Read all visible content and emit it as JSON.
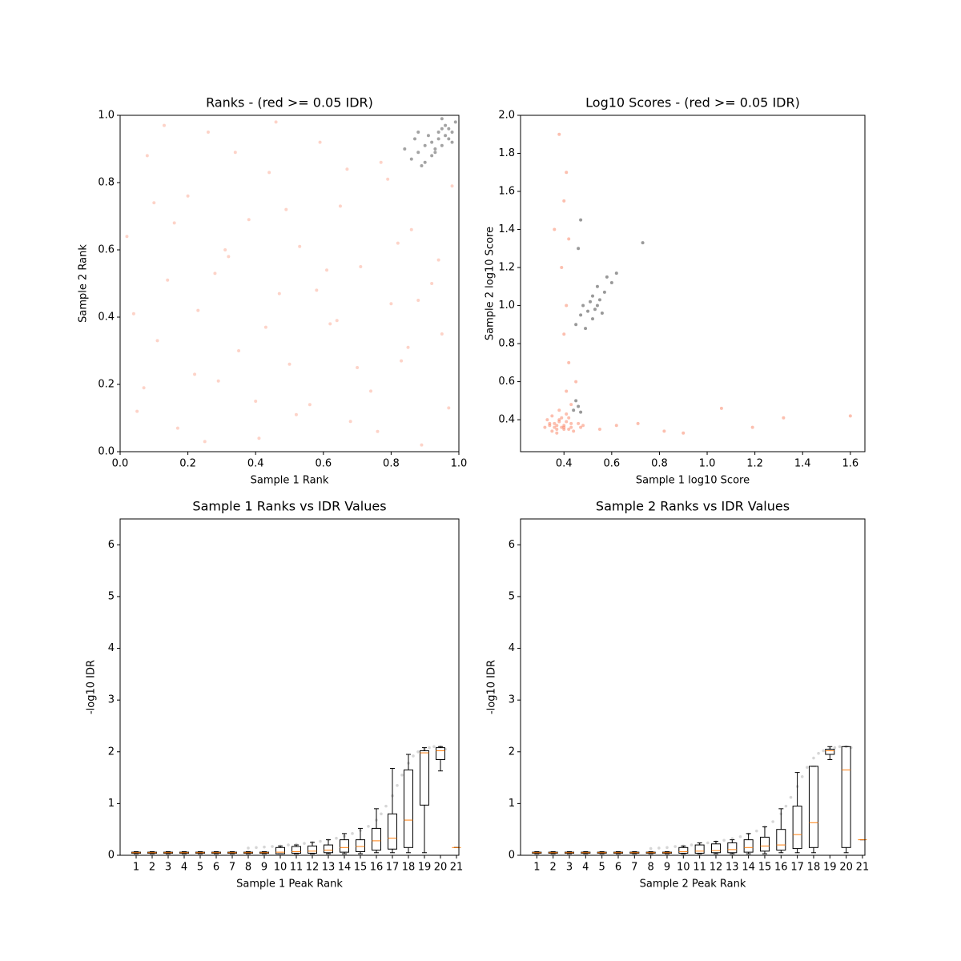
{
  "chart_data": [
    {
      "type": "scatter",
      "title": "Ranks - (red >= 0.05 IDR)",
      "x_label": "Sample 1 Rank",
      "y_label": "Sample 2 Rank",
      "xlim": [
        0,
        1
      ],
      "ylim": [
        0,
        1
      ],
      "xticks": [
        {
          "value": 0,
          "label": "0.0"
        },
        0.2,
        0.4,
        0.6,
        0.8,
        {
          "value": 1,
          "label": "1.0"
        }
      ],
      "yticks": [
        {
          "value": 0,
          "label": "0.0"
        },
        0.2,
        0.4,
        0.6,
        0.8,
        {
          "value": 1,
          "label": "1.0"
        }
      ],
      "series": [
        {
          "color": "#fa8060",
          "alpha": 0.35,
          "x": [
            0.02,
            0.05,
            0.08,
            0.11,
            0.14,
            0.17,
            0.2,
            0.23,
            0.26,
            0.29,
            0.32,
            0.35,
            0.38,
            0.41,
            0.44,
            0.47,
            0.5,
            0.53,
            0.56,
            0.59,
            0.62,
            0.65,
            0.68,
            0.71,
            0.74,
            0.77,
            0.8,
            0.83,
            0.86,
            0.89,
            0.92,
            0.95,
            0.98,
            0.04,
            0.13,
            0.22,
            0.31,
            0.4,
            0.49,
            0.58,
            0.67,
            0.76,
            0.85,
            0.94,
            0.07,
            0.16,
            0.25,
            0.34,
            0.43,
            0.52,
            0.61,
            0.7,
            0.79,
            0.88,
            0.97,
            0.1,
            0.28,
            0.46,
            0.64,
            0.82
          ],
          "y": [
            0.64,
            0.12,
            0.88,
            0.33,
            0.51,
            0.07,
            0.76,
            0.42,
            0.95,
            0.21,
            0.58,
            0.3,
            0.69,
            0.04,
            0.83,
            0.47,
            0.26,
            0.61,
            0.14,
            0.92,
            0.38,
            0.73,
            0.09,
            0.55,
            0.18,
            0.86,
            0.44,
            0.27,
            0.66,
            0.02,
            0.5,
            0.35,
            0.79,
            0.41,
            0.97,
            0.23,
            0.6,
            0.15,
            0.72,
            0.48,
            0.84,
            0.06,
            0.31,
            0.57,
            0.19,
            0.68,
            0.03,
            0.89,
            0.37,
            0.11,
            0.54,
            0.25,
            0.81,
            0.45,
            0.13,
            0.74,
            0.53,
            0.98,
            0.39,
            0.62
          ]
        },
        {
          "color": "#333333",
          "alpha": 0.45,
          "x": [
            0.84,
            0.86,
            0.87,
            0.88,
            0.89,
            0.9,
            0.91,
            0.92,
            0.92,
            0.93,
            0.94,
            0.94,
            0.95,
            0.95,
            0.96,
            0.96,
            0.97,
            0.97,
            0.98,
            0.99,
            0.9,
            0.93,
            0.88,
            0.95,
            0.98
          ],
          "y": [
            0.9,
            0.87,
            0.93,
            0.89,
            0.85,
            0.91,
            0.94,
            0.88,
            0.92,
            0.9,
            0.95,
            0.93,
            0.96,
            0.91,
            0.94,
            0.97,
            0.93,
            0.96,
            0.95,
            0.98,
            0.86,
            0.89,
            0.95,
            0.99,
            0.92
          ]
        }
      ]
    },
    {
      "type": "scatter",
      "title": "Log10 Scores - (red >= 0.05 IDR)",
      "x_label": "Sample 1 log10 Score",
      "y_label": "Sample 2 log10 Score",
      "xlim": [
        0.218,
        1.661
      ],
      "ylim": [
        0.232,
        2.0
      ],
      "xticks": [
        0.4,
        0.6,
        0.8,
        {
          "value": 1,
          "label": "1.0"
        },
        1.2,
        1.4,
        1.6
      ],
      "yticks": [
        0.4,
        0.6,
        0.8,
        {
          "value": 1,
          "label": "1.0"
        },
        1.2,
        1.4,
        1.6,
        1.8,
        {
          "value": 2,
          "label": "2.0"
        }
      ],
      "series": [
        {
          "color": "#fa8060",
          "alpha": 0.5,
          "x": [
            0.32,
            0.34,
            0.35,
            0.36,
            0.37,
            0.38,
            0.39,
            0.4,
            0.41,
            0.42,
            0.43,
            0.33,
            0.35,
            0.37,
            0.39,
            0.41,
            0.43,
            0.44,
            0.36,
            0.38,
            0.4,
            0.42,
            0.34,
            0.37,
            0.4,
            0.41,
            0.42,
            0.4,
            0.41,
            0.39,
            0.42,
            0.4,
            0.41,
            0.38,
            0.36,
            0.47,
            0.55,
            0.62,
            0.71,
            0.82,
            0.9,
            1.06,
            1.19,
            1.32,
            1.6,
            0.43,
            0.45,
            0.38,
            0.46,
            0.48
          ],
          "y": [
            0.36,
            0.37,
            0.34,
            0.38,
            0.35,
            0.4,
            0.36,
            0.37,
            0.39,
            0.35,
            0.38,
            0.4,
            0.42,
            0.33,
            0.41,
            0.43,
            0.36,
            0.34,
            0.36,
            0.39,
            0.35,
            0.41,
            0.38,
            0.37,
            0.36,
            0.55,
            0.7,
            0.85,
            1.0,
            1.2,
            1.35,
            1.55,
            1.7,
            1.9,
            1.4,
            0.36,
            0.35,
            0.37,
            0.38,
            0.34,
            0.33,
            0.46,
            0.36,
            0.41,
            0.42,
            0.48,
            0.6,
            0.45,
            0.38,
            0.37
          ]
        },
        {
          "color": "#333333",
          "alpha": 0.5,
          "x": [
            0.45,
            0.47,
            0.48,
            0.5,
            0.51,
            0.52,
            0.53,
            0.54,
            0.55,
            0.56,
            0.57,
            0.49,
            0.52,
            0.54,
            0.58,
            0.62,
            0.44,
            0.46,
            0.45,
            0.47,
            0.6,
            0.73,
            0.46,
            0.47
          ],
          "y": [
            0.9,
            0.95,
            1.0,
            0.97,
            1.02,
            1.05,
            0.98,
            1.0,
            1.03,
            0.96,
            1.07,
            0.88,
            0.93,
            1.1,
            1.15,
            1.17,
            0.45,
            0.47,
            0.5,
            0.44,
            1.12,
            1.33,
            1.3,
            1.45
          ]
        }
      ]
    },
    {
      "type": "box",
      "title": "Sample 1 Ranks vs IDR Values",
      "x_label": "Sample 1 Peak Rank",
      "y_label": "-log10 IDR",
      "xlim": [
        0,
        21.15
      ],
      "ylim": [
        0,
        6.5
      ],
      "xticks": [
        1,
        2,
        3,
        4,
        5,
        6,
        7,
        8,
        9,
        10,
        11,
        12,
        13,
        14,
        15,
        16,
        17,
        18,
        19,
        20,
        21
      ],
      "yticks": [
        0,
        1,
        2,
        3,
        4,
        5,
        6
      ],
      "points": {
        "color": "#333333",
        "alpha": 0.2,
        "x": [
          8,
          8.5,
          9,
          9.5,
          10,
          10.5,
          11,
          11.5,
          12,
          12.5,
          13,
          13.5,
          14,
          14.5,
          15,
          15.5,
          16,
          16.3,
          16.6,
          17,
          17.3,
          17.6,
          18,
          18.3,
          18.6,
          19,
          19.3,
          19.6,
          20,
          20.3
        ],
        "y": [
          0.14,
          0.15,
          0.16,
          0.17,
          0.18,
          0.2,
          0.21,
          0.23,
          0.25,
          0.27,
          0.3,
          0.33,
          0.37,
          0.42,
          0.48,
          0.56,
          0.68,
          0.8,
          0.95,
          1.15,
          1.35,
          1.55,
          1.78,
          1.92,
          2.0,
          2.05,
          2.08,
          2.1,
          2.1,
          2.05
        ]
      },
      "boxes": {
        "low": [
          0.03,
          0.03,
          0.03,
          0.03,
          0.03,
          0.03,
          0.03,
          0.03,
          0.03,
          0.03,
          0.03,
          0.03,
          0.03,
          0.03,
          0.03,
          0.05,
          0.05,
          0.05,
          0.05,
          1.63,
          0.15
        ],
        "q1": [
          0.04,
          0.04,
          0.04,
          0.04,
          0.04,
          0.04,
          0.04,
          0.04,
          0.04,
          0.03,
          0.04,
          0.04,
          0.05,
          0.06,
          0.07,
          0.1,
          0.12,
          0.15,
          0.97,
          1.85,
          0.15
        ],
        "median": [
          0.05,
          0.05,
          0.05,
          0.05,
          0.05,
          0.05,
          0.05,
          0.05,
          0.05,
          0.06,
          0.07,
          0.08,
          0.1,
          0.15,
          0.17,
          0.28,
          0.33,
          0.68,
          1.98,
          2.02,
          0.15
        ],
        "q3": [
          0.06,
          0.06,
          0.06,
          0.06,
          0.06,
          0.06,
          0.06,
          0.06,
          0.06,
          0.15,
          0.17,
          0.18,
          0.2,
          0.3,
          0.3,
          0.52,
          0.8,
          1.65,
          2.02,
          2.08,
          0.15
        ],
        "high": [
          0.07,
          0.07,
          0.07,
          0.07,
          0.07,
          0.07,
          0.07,
          0.07,
          0.07,
          0.18,
          0.2,
          0.25,
          0.3,
          0.42,
          0.52,
          0.9,
          1.68,
          1.95,
          2.08,
          2.1,
          0.15
        ]
      }
    },
    {
      "type": "box",
      "title": "Sample 2 Ranks vs IDR Values",
      "x_label": "Sample 2 Peak Rank",
      "y_label": "-log10 IDR",
      "xlim": [
        0,
        21.15
      ],
      "ylim": [
        0,
        6.5
      ],
      "xticks": [
        1,
        2,
        3,
        4,
        5,
        6,
        7,
        8,
        9,
        10,
        11,
        12,
        13,
        14,
        15,
        16,
        17,
        18,
        19,
        20,
        21
      ],
      "yticks": [
        0,
        1,
        2,
        3,
        4,
        5,
        6
      ],
      "points": {
        "color": "#333333",
        "alpha": 0.2,
        "x": [
          8,
          8.5,
          9,
          9.5,
          10,
          10.5,
          11,
          11.5,
          12,
          12.5,
          13,
          13.5,
          14,
          14.5,
          15,
          15.5,
          16,
          16.3,
          16.6,
          17,
          17.3,
          17.6,
          18,
          18.3,
          18.6,
          19,
          19.3,
          19.6,
          20,
          20.3
        ],
        "y": [
          0.13,
          0.14,
          0.15,
          0.17,
          0.18,
          0.2,
          0.22,
          0.24,
          0.26,
          0.29,
          0.32,
          0.36,
          0.41,
          0.47,
          0.55,
          0.65,
          0.8,
          0.95,
          1.12,
          1.33,
          1.52,
          1.7,
          1.88,
          1.97,
          2.02,
          2.06,
          2.08,
          2.1,
          2.1,
          2.08
        ]
      },
      "boxes": {
        "low": [
          0.03,
          0.03,
          0.03,
          0.03,
          0.03,
          0.03,
          0.03,
          0.03,
          0.03,
          0.03,
          0.03,
          0.03,
          0.03,
          0.03,
          0.03,
          0.05,
          0.05,
          0.05,
          1.85,
          0.05,
          0.3
        ],
        "q1": [
          0.04,
          0.04,
          0.04,
          0.04,
          0.04,
          0.04,
          0.04,
          0.04,
          0.04,
          0.04,
          0.04,
          0.05,
          0.05,
          0.06,
          0.08,
          0.1,
          0.13,
          0.15,
          1.95,
          0.15,
          0.3
        ],
        "median": [
          0.05,
          0.05,
          0.05,
          0.05,
          0.05,
          0.05,
          0.05,
          0.05,
          0.05,
          0.07,
          0.08,
          0.09,
          0.11,
          0.15,
          0.18,
          0.2,
          0.4,
          0.63,
          2.02,
          1.65,
          0.3
        ],
        "q3": [
          0.06,
          0.06,
          0.06,
          0.06,
          0.06,
          0.06,
          0.06,
          0.06,
          0.06,
          0.15,
          0.2,
          0.22,
          0.24,
          0.3,
          0.35,
          0.5,
          0.95,
          1.72,
          2.05,
          2.1,
          0.3
        ],
        "high": [
          0.07,
          0.07,
          0.07,
          0.07,
          0.07,
          0.07,
          0.07,
          0.07,
          0.07,
          0.18,
          0.24,
          0.27,
          0.3,
          0.42,
          0.55,
          0.9,
          1.6,
          1.72,
          2.1,
          2.1,
          0.3
        ]
      }
    }
  ]
}
